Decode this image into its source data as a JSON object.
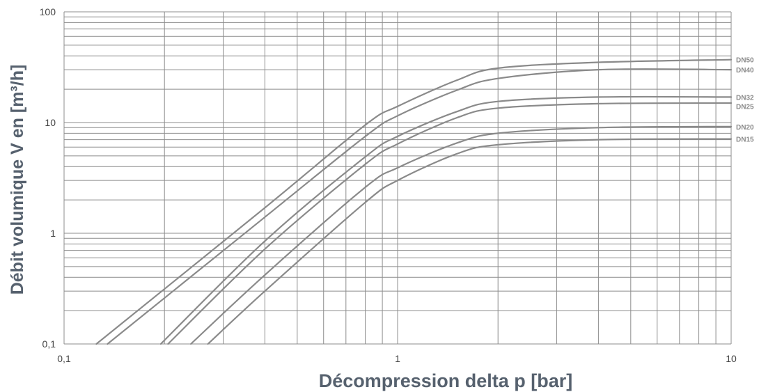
{
  "chart_data": {
    "type": "line",
    "xlabel": "Décompression delta p [bar]",
    "ylabel": "Débit volumique V en [m³/h]",
    "xscale": "log",
    "yscale": "log",
    "xlim": [
      0.1,
      10
    ],
    "ylim": [
      0.1,
      100
    ],
    "grid": true,
    "x_tick_labels": [
      {
        "value": 0.1,
        "label": "0,1"
      },
      {
        "value": 1,
        "label": "1"
      },
      {
        "value": 10,
        "label": "10"
      }
    ],
    "y_tick_labels": [
      {
        "value": 0.1,
        "label": "0,1"
      },
      {
        "value": 1,
        "label": "1"
      },
      {
        "value": 10,
        "label": "10"
      },
      {
        "value": 100,
        "label": "100"
      }
    ],
    "series": [
      {
        "name": "DN50",
        "points": [
          [
            0.125,
            0.1
          ],
          [
            0.4,
            1.7
          ],
          [
            0.8,
            9.5
          ],
          [
            1.0,
            14
          ],
          [
            1.5,
            24
          ],
          [
            2,
            31
          ],
          [
            4,
            35
          ],
          [
            10,
            37
          ]
        ]
      },
      {
        "name": "DN40",
        "points": [
          [
            0.135,
            0.1
          ],
          [
            0.4,
            1.4
          ],
          [
            0.8,
            7.5
          ],
          [
            1.0,
            11.5
          ],
          [
            1.5,
            19.5
          ],
          [
            2,
            25
          ],
          [
            4,
            30
          ],
          [
            10,
            30
          ]
        ]
      },
      {
        "name": "DN32",
        "points": [
          [
            0.195,
            0.1
          ],
          [
            0.4,
            0.85
          ],
          [
            0.8,
            4.9
          ],
          [
            1.0,
            7.5
          ],
          [
            1.5,
            12.5
          ],
          [
            2,
            15.5
          ],
          [
            4,
            17
          ],
          [
            10,
            17
          ]
        ]
      },
      {
        "name": "DN25",
        "points": [
          [
            0.205,
            0.1
          ],
          [
            0.4,
            0.72
          ],
          [
            0.8,
            4.2
          ],
          [
            1.0,
            6.4
          ],
          [
            1.5,
            11
          ],
          [
            2,
            13.5
          ],
          [
            4,
            14.8
          ],
          [
            10,
            15
          ]
        ]
      },
      {
        "name": "DN20",
        "points": [
          [
            0.24,
            0.1
          ],
          [
            0.4,
            0.42
          ],
          [
            0.8,
            2.6
          ],
          [
            1.0,
            3.9
          ],
          [
            1.5,
            6.5
          ],
          [
            2,
            8
          ],
          [
            4,
            9
          ],
          [
            10,
            9.2
          ]
        ]
      },
      {
        "name": "DN15",
        "points": [
          [
            0.27,
            0.1
          ],
          [
            0.4,
            0.3
          ],
          [
            0.8,
            1.9
          ],
          [
            1.0,
            3.0
          ],
          [
            1.5,
            5.2
          ],
          [
            2,
            6.3
          ],
          [
            4,
            7
          ],
          [
            10,
            7.1
          ]
        ]
      }
    ],
    "colors": {
      "grid": "#8c8c8c",
      "series": "#8a8a8a",
      "axis_title": "#56616e",
      "tick_text": "#444444"
    }
  }
}
